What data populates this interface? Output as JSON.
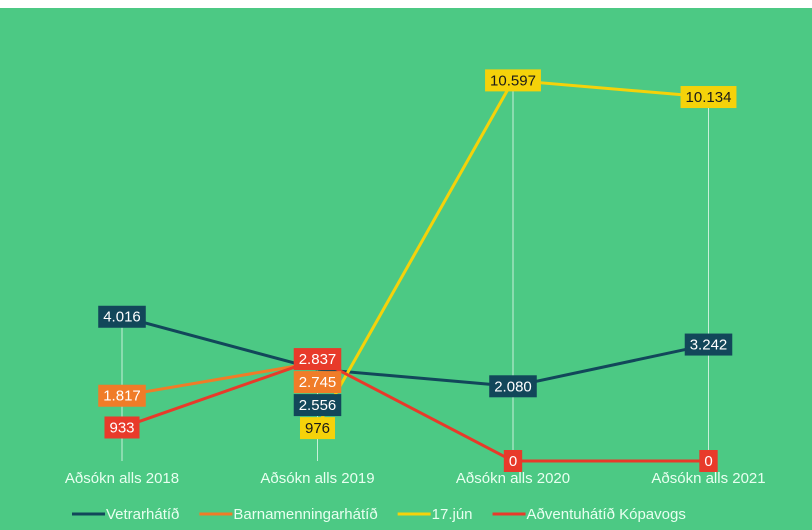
{
  "chart_data": {
    "type": "line",
    "categories": [
      "Aðsókn alls 2018",
      "Aðsókn alls 2019",
      "Aðsókn alls 2020",
      "Aðsókn alls 2021"
    ],
    "ylim": [
      0,
      12000
    ],
    "series": [
      {
        "name": "Vetrarhátíð",
        "color": "#12475a",
        "values": [
          4016,
          2556,
          2080,
          3242
        ],
        "value_labels": [
          "4.016",
          "2.556",
          "2.080",
          "3.242"
        ]
      },
      {
        "name": "Barnamenningarhátíð",
        "color": "#f07c28",
        "values": [
          1817,
          2745,
          null,
          null
        ],
        "value_labels": [
          "1.817",
          "2.745",
          null,
          null
        ]
      },
      {
        "name": "17.jún",
        "color": "#f5d20a",
        "values": [
          null,
          976,
          10597,
          10134
        ],
        "value_labels": [
          null,
          "976",
          "10.597",
          "10.134"
        ]
      },
      {
        "name": "Aðventuhátíð Kópavogs",
        "color": "#e83a2a",
        "values": [
          933,
          2837,
          0,
          0
        ],
        "value_labels": [
          "933",
          "2.837",
          "0",
          "0"
        ]
      }
    ]
  }
}
